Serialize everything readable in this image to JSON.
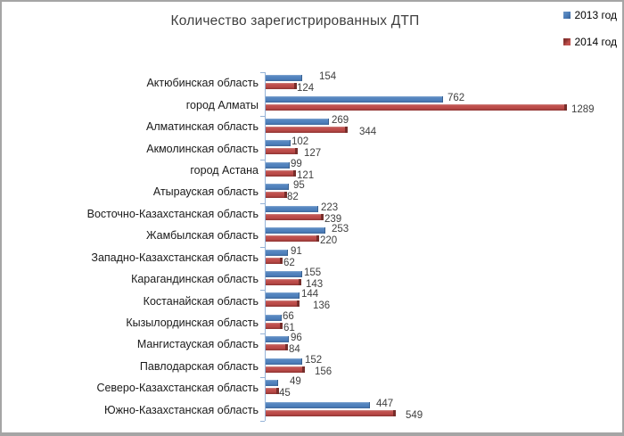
{
  "title": "Количество зарегистрированных ДТП",
  "legend": {
    "position": "top-right",
    "items": [
      {
        "label": "2013 год",
        "color": "#4F81BD"
      },
      {
        "label": "2014 год",
        "color": "#C0504D"
      }
    ]
  },
  "chart_data": {
    "type": "bar",
    "orientation": "horizontal",
    "title": "Количество зарегистрированных ДТП",
    "categories": [
      "Актюбинская область",
      "город Алматы",
      "Алматинская область",
      "Акмолинская область",
      "город Астана",
      "Атырауская область",
      "Восточно-Казахстанская область",
      "Жамбылская область",
      "Западно-Казахстанская область",
      "Карагандинская область",
      "Костанайская область",
      "Кызылординская область",
      "Мангистауская область",
      "Павлодарская область",
      "Северо-Казахстанская область",
      "Южно-Казахстанская область"
    ],
    "series": [
      {
        "name": "2013 год",
        "color": "#4F81BD",
        "values": [
          154,
          762,
          269,
          102,
          99,
          95,
          223,
          253,
          91,
          155,
          144,
          66,
          96,
          152,
          49,
          447
        ]
      },
      {
        "name": "2014 год",
        "color": "#C0504D",
        "values": [
          124,
          1289,
          344,
          127,
          121,
          82,
          239,
          220,
          62,
          143,
          136,
          61,
          84,
          156,
          45,
          549
        ]
      }
    ],
    "value_labels": true,
    "grid": false,
    "xlim": [
      0,
      1344
    ],
    "axis_color": "#95B3D7",
    "legend_position": "top-right",
    "label_dx_2013": [
      20,
      6,
      4,
      2,
      2,
      6,
      4,
      8,
      4,
      3,
      3,
      2,
      3,
      4,
      14,
      8
    ],
    "label_dx_2014": [
      3,
      8,
      16,
      10,
      4,
      3,
      4,
      4,
      4,
      8,
      18,
      4,
      4,
      14,
      3,
      14
    ]
  }
}
